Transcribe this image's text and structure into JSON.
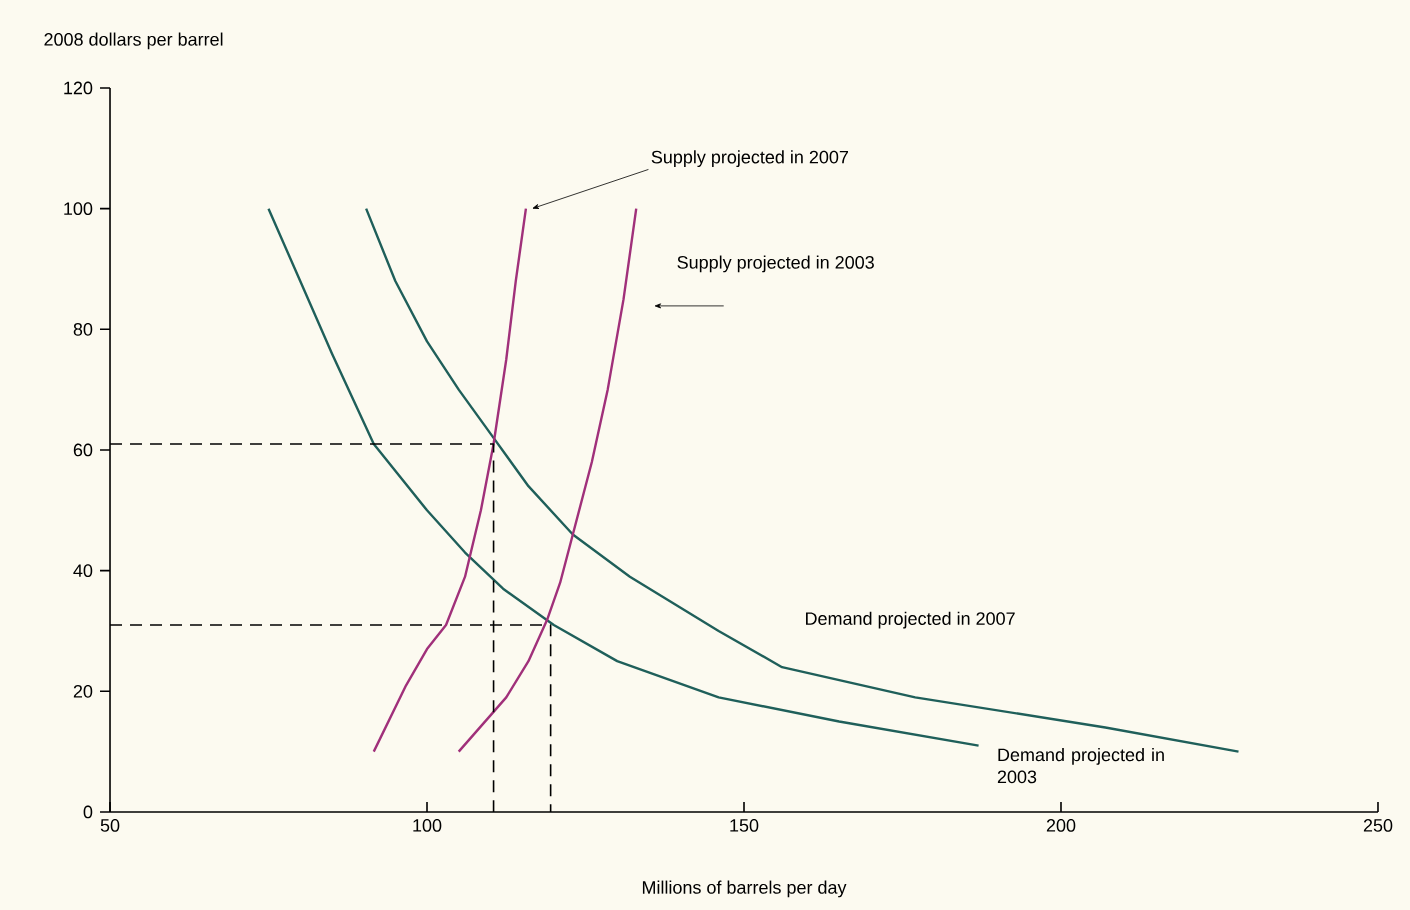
{
  "chart_data": {
    "type": "line",
    "xlabel": "Millions of barrels per day",
    "ylabel": "2008 dollars per barrel",
    "xlim": [
      50,
      250
    ],
    "xticks": [
      50,
      100,
      150,
      200,
      250
    ],
    "ylim": [
      0,
      120
    ],
    "yticks": [
      0,
      20,
      40,
      60,
      80,
      100,
      120
    ],
    "series": [
      {
        "color": "#1f5f5a",
        "x": [
          75,
          80,
          85,
          91.6,
          100,
          106,
          112,
          120,
          130,
          146,
          165,
          187
        ],
        "values": [
          100,
          88,
          76,
          61,
          50,
          43,
          37,
          31,
          25,
          19,
          15,
          11
        ]
      },
      {
        "color": "#1f5f5a",
        "x": [
          90.4,
          95,
          100,
          105,
          110.5,
          116,
          123,
          132,
          146,
          156,
          177,
          207,
          228
        ],
        "values": [
          100,
          88,
          78,
          70,
          62,
          54,
          46,
          39,
          30,
          24,
          19,
          14,
          10
        ]
      },
      {
        "color": "#a0307a",
        "x": [
          91.6,
          96.7,
          100,
          103,
          106,
          108.5,
          110.5,
          112.5,
          114,
          115.6
        ],
        "values": [
          10,
          21,
          27,
          31,
          39,
          50,
          61,
          75,
          88,
          100
        ]
      },
      {
        "color": "#a0307a",
        "x": [
          105,
          112.5,
          116,
          119,
          121,
          123,
          126,
          128.5,
          131,
          133
        ],
        "values": [
          10,
          19,
          25,
          32,
          38,
          46,
          58,
          70,
          85,
          100
        ]
      },
      {
        "color": "#000000",
        "line_style": "dashed",
        "x": [
          50,
          110.5,
          110.5
        ],
        "values": [
          61,
          61,
          0
        ]
      },
      {
        "color": "#000000",
        "line_style": "dashed",
        "x": [
          50,
          119.5,
          119.5
        ],
        "values": [
          31,
          31,
          0
        ]
      }
    ],
    "annotations": [
      {
        "text": "Supply projected in 2007",
        "x": 115.6,
        "y": 100
      },
      "Supply projected in 2003",
      "Demand projected in 2007",
      {
        "text": "Demand projected in 2003",
        "x": 187,
        "y": 11
      }
    ]
  }
}
